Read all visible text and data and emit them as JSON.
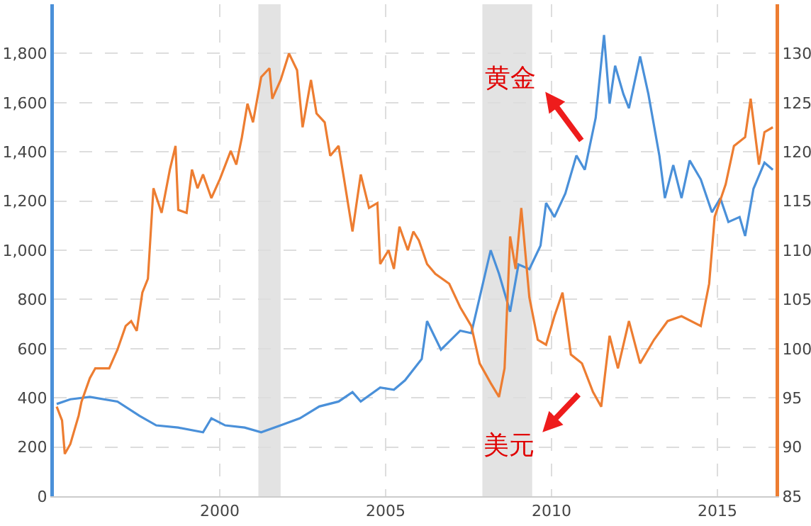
{
  "chart_data": {
    "type": "line",
    "xlim": [
      "1995-01",
      "2016-10"
    ],
    "xticks": [
      {
        "value": "2000-01",
        "label": "2000"
      },
      {
        "value": "2005-01",
        "label": "2005"
      },
      {
        "value": "2010-01",
        "label": "2010"
      },
      {
        "value": "2015-01",
        "label": "2015"
      }
    ],
    "ylim": [
      0,
      2000
    ],
    "yticks": [
      0,
      200,
      400,
      600,
      800,
      {
        "value": 1000,
        "label": "1,000"
      },
      {
        "value": 1200,
        "label": "1,200"
      },
      {
        "value": 1400,
        "label": "1,400"
      },
      {
        "value": 1600,
        "label": "1,600"
      },
      {
        "value": 1800,
        "label": "1,800"
      }
    ],
    "y2lim": [
      85,
      135
    ],
    "y2ticks": [
      85,
      90,
      95,
      100,
      105,
      110,
      115,
      120,
      125,
      130
    ],
    "grid": true,
    "line_style": "solid",
    "marker": "none",
    "bands": [
      {
        "axis": "x",
        "from": "2001-03",
        "to": "2001-11",
        "color": "#e3e3e3"
      },
      {
        "axis": "x",
        "from": "2007-12",
        "to": "2009-06",
        "color": "#e3e3e3"
      }
    ],
    "annotations": [
      "黄金",
      "美元"
    ],
    "series": [
      {
        "color": "#4a90d9",
        "x": [
          "1995-02",
          "1995-07",
          "1996-02",
          "1996-12",
          "1997-08",
          "1998-02",
          "1998-10",
          "1999-07",
          "1999-10",
          "2000-03",
          "2000-10",
          "2001-04",
          "2001-11",
          "2002-06",
          "2003-01",
          "2003-08",
          "2004-01",
          "2004-04",
          "2004-11",
          "2005-04",
          "2005-08",
          "2006-02",
          "2006-04",
          "2006-09",
          "2007-04",
          "2007-08",
          "2007-11",
          "2008-03",
          "2008-06",
          "2008-10",
          "2009-01",
          "2009-05",
          "2009-09",
          "2009-11",
          "2010-02",
          "2010-06",
          "2010-10",
          "2011-01",
          "2011-05",
          "2011-08",
          "2011-10",
          "2011-12",
          "2012-03",
          "2012-05",
          "2012-09",
          "2012-12",
          "2013-04",
          "2013-06",
          "2013-09",
          "2013-12",
          "2014-03",
          "2014-07",
          "2014-11",
          "2015-02",
          "2015-05",
          "2015-09",
          "2015-11",
          "2016-02",
          "2016-06",
          "2016-09"
        ],
        "values": [
          375,
          394,
          404,
          385,
          327,
          288,
          279,
          260,
          317,
          288,
          279,
          260,
          288,
          317,
          365,
          385,
          423,
          385,
          442,
          433,
          471,
          558,
          712,
          596,
          673,
          663,
          808,
          1000,
          904,
          750,
          942,
          923,
          1019,
          1192,
          1135,
          1231,
          1385,
          1327,
          1538,
          1875,
          1596,
          1750,
          1635,
          1577,
          1788,
          1635,
          1385,
          1212,
          1346,
          1212,
          1365,
          1288,
          1154,
          1212,
          1115,
          1135,
          1058,
          1250,
          1356,
          1327
        ]
      },
      {
        "color": "#ed7d31",
        "axis": "y2",
        "x": [
          "1995-02",
          "1995-04",
          "1995-05",
          "1995-07",
          "1995-10",
          "1995-11",
          "1996-02",
          "1996-04",
          "1996-09",
          "1996-12",
          "1997-03",
          "1997-05",
          "1997-07",
          "1997-09",
          "1997-11",
          "1998-01",
          "1998-04",
          "1998-07",
          "1998-09",
          "1998-10",
          "1999-01",
          "1999-03",
          "1999-05",
          "1999-07",
          "1999-10",
          "2000-01",
          "2000-05",
          "2000-07",
          "2000-09",
          "2000-11",
          "2001-01",
          "2001-04",
          "2001-07",
          "2001-08",
          "2001-11",
          "2002-02",
          "2002-05",
          "2002-07",
          "2002-10",
          "2002-12",
          "2003-03",
          "2003-05",
          "2003-08",
          "2003-10",
          "2004-01",
          "2004-04",
          "2004-07",
          "2004-10",
          "2004-11",
          "2005-02",
          "2005-04",
          "2005-06",
          "2005-09",
          "2005-11",
          "2006-01",
          "2006-04",
          "2006-07",
          "2006-12",
          "2007-04",
          "2007-08",
          "2007-11",
          "2008-03",
          "2008-06",
          "2008-08",
          "2008-10",
          "2008-12",
          "2009-02",
          "2009-05",
          "2009-08",
          "2009-11",
          "2010-02",
          "2010-05",
          "2010-08",
          "2010-12",
          "2011-04",
          "2011-07",
          "2011-10",
          "2012-01",
          "2012-05",
          "2012-09",
          "2013-02",
          "2013-07",
          "2013-12",
          "2014-07",
          "2014-10",
          "2014-12",
          "2015-04",
          "2015-07",
          "2015-11",
          "2016-01",
          "2016-04",
          "2016-06",
          "2016-09"
        ],
        "values": [
          94.1,
          92.7,
          89.3,
          90.3,
          93.2,
          94.6,
          97.0,
          98.0,
          98.0,
          99.9,
          102.3,
          102.8,
          101.8,
          105.7,
          107.1,
          116.3,
          113.8,
          118.2,
          120.6,
          114.1,
          113.8,
          118.2,
          116.3,
          117.7,
          115.3,
          117.2,
          120.1,
          118.7,
          121.5,
          124.9,
          123.0,
          127.6,
          128.5,
          125.4,
          127.3,
          130.0,
          128.3,
          122.5,
          127.3,
          123.9,
          123.0,
          119.6,
          120.6,
          117.2,
          111.9,
          117.7,
          114.3,
          114.8,
          108.6,
          110.0,
          108.1,
          112.4,
          110.0,
          111.9,
          111.0,
          108.6,
          107.6,
          106.6,
          104.2,
          102.3,
          98.5,
          96.5,
          95.1,
          98.0,
          111.4,
          108.1,
          114.3,
          105.2,
          100.9,
          100.4,
          103.3,
          105.7,
          99.4,
          98.5,
          95.6,
          94.1,
          101.3,
          98.0,
          102.8,
          98.5,
          100.9,
          102.8,
          103.3,
          102.3,
          106.6,
          113.4,
          116.7,
          120.6,
          121.5,
          125.4,
          118.7,
          122.0,
          122.5
        ]
      }
    ]
  }
}
